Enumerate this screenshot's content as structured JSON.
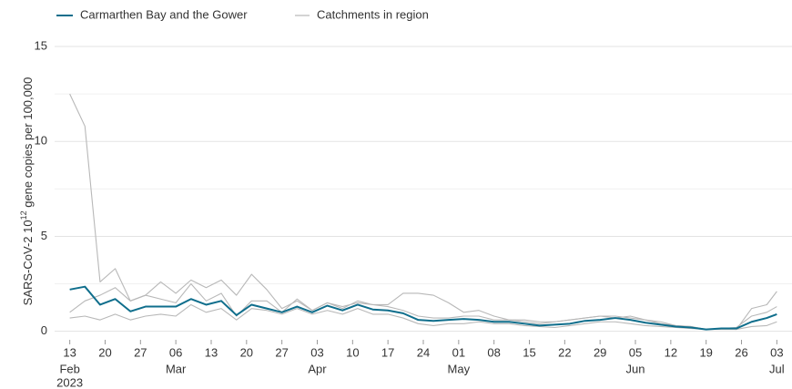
{
  "chart_data": {
    "type": "line",
    "ylabel": "SARS-CoV-2 10",
    "ylabel_sup": "12",
    "ylabel_rest": " gene copies per 100,000",
    "x": [
      "2023-02-13",
      "2023-02-16",
      "2023-02-19",
      "2023-02-22",
      "2023-02-25",
      "2023-02-28",
      "2023-03-03",
      "2023-03-06",
      "2023-03-09",
      "2023-03-12",
      "2023-03-15",
      "2023-03-18",
      "2023-03-21",
      "2023-03-24",
      "2023-03-27",
      "2023-03-30",
      "2023-04-02",
      "2023-04-05",
      "2023-04-08",
      "2023-04-11",
      "2023-04-14",
      "2023-04-17",
      "2023-04-20",
      "2023-04-23",
      "2023-04-26",
      "2023-04-29",
      "2023-05-02",
      "2023-05-05",
      "2023-05-08",
      "2023-05-11",
      "2023-05-14",
      "2023-05-17",
      "2023-05-20",
      "2023-05-23",
      "2023-05-26",
      "2023-05-29",
      "2023-06-01",
      "2023-06-04",
      "2023-06-07",
      "2023-06-10",
      "2023-06-13",
      "2023-06-16",
      "2023-06-19",
      "2023-06-22",
      "2023-06-25",
      "2023-06-28",
      "2023-07-01",
      "2023-07-03"
    ],
    "series": [
      {
        "name": "Carmarthen Bay and the Gower",
        "color": "#0f6e8c",
        "values": [
          2.2,
          2.35,
          1.4,
          1.7,
          1.05,
          1.3,
          1.3,
          1.3,
          1.7,
          1.4,
          1.6,
          0.85,
          1.4,
          1.2,
          1.0,
          1.3,
          1.0,
          1.35,
          1.1,
          1.4,
          1.15,
          1.1,
          0.95,
          0.6,
          0.55,
          0.6,
          0.65,
          0.6,
          0.5,
          0.5,
          0.4,
          0.3,
          0.35,
          0.4,
          0.55,
          0.6,
          0.7,
          0.6,
          0.45,
          0.35,
          0.25,
          0.2,
          0.1,
          0.15,
          0.15,
          0.5,
          0.7,
          0.9
        ]
      }
    ],
    "region": {
      "name": "Catchments in region",
      "color": "#b8b8b8",
      "lines": [
        {
          "values": [
            12.5,
            10.8,
            2.6,
            3.3,
            1.6,
            1.9,
            2.6,
            2.0,
            2.7,
            2.3,
            2.7,
            1.9,
            3.0,
            2.2,
            1.2,
            1.6,
            1.1,
            1.5,
            1.3,
            1.5,
            1.4,
            1.4,
            2.0,
            2.0,
            1.9,
            1.5,
            1.0,
            1.1,
            0.8,
            0.6,
            0.6,
            0.5,
            0.5,
            0.6,
            0.7,
            0.8,
            0.7,
            0.8,
            0.6,
            0.5,
            0.3,
            0.25,
            0.1,
            0.15,
            0.1,
            1.2,
            1.4,
            2.1
          ]
        },
        {
          "values": [
            1.0,
            1.6,
            1.9,
            2.3,
            1.6,
            1.9,
            1.7,
            1.5,
            2.5,
            1.6,
            2.0,
            0.8,
            1.6,
            1.6,
            1.0,
            1.7,
            1.1,
            1.5,
            1.2,
            1.6,
            1.4,
            1.3,
            1.1,
            0.8,
            0.7,
            0.7,
            0.8,
            0.8,
            0.6,
            0.6,
            0.5,
            0.4,
            0.5,
            0.6,
            0.7,
            0.8,
            0.8,
            0.7,
            0.6,
            0.4,
            0.3,
            0.25,
            0.1,
            0.15,
            0.2,
            0.8,
            1.0,
            1.3
          ]
        },
        {
          "values": [
            0.7,
            0.8,
            0.6,
            0.9,
            0.6,
            0.8,
            0.9,
            0.8,
            1.4,
            1.0,
            1.2,
            0.6,
            1.2,
            1.1,
            0.9,
            1.2,
            0.9,
            1.1,
            0.9,
            1.2,
            0.9,
            0.9,
            0.7,
            0.4,
            0.3,
            0.4,
            0.4,
            0.5,
            0.4,
            0.4,
            0.3,
            0.25,
            0.2,
            0.3,
            0.4,
            0.5,
            0.5,
            0.4,
            0.3,
            0.25,
            0.2,
            0.15,
            0.1,
            0.1,
            0.1,
            0.25,
            0.3,
            0.5
          ]
        }
      ]
    },
    "xlim": [
      "2023-02-10",
      "2023-07-06"
    ],
    "xticks": [
      {
        "value": "2023-02-13",
        "label": "13"
      },
      {
        "value": "2023-02-20",
        "label": "20"
      },
      {
        "value": "2023-02-27",
        "label": "27"
      },
      {
        "value": "2023-03-06",
        "label": "06"
      },
      {
        "value": "2023-03-13",
        "label": "13"
      },
      {
        "value": "2023-03-20",
        "label": "20"
      },
      {
        "value": "2023-03-27",
        "label": "27"
      },
      {
        "value": "2023-04-03",
        "label": "03"
      },
      {
        "value": "2023-04-10",
        "label": "10"
      },
      {
        "value": "2023-04-17",
        "label": "17"
      },
      {
        "value": "2023-04-24",
        "label": "24"
      },
      {
        "value": "2023-05-01",
        "label": "01"
      },
      {
        "value": "2023-05-08",
        "label": "08"
      },
      {
        "value": "2023-05-15",
        "label": "15"
      },
      {
        "value": "2023-05-22",
        "label": "22"
      },
      {
        "value": "2023-05-29",
        "label": "29"
      },
      {
        "value": "2023-06-05",
        "label": "05"
      },
      {
        "value": "2023-06-12",
        "label": "12"
      },
      {
        "value": "2023-06-19",
        "label": "19"
      },
      {
        "value": "2023-06-26",
        "label": "26"
      },
      {
        "value": "2023-07-03",
        "label": "03"
      }
    ],
    "month_ticks": [
      {
        "value": "2023-02-13",
        "label": "Feb"
      },
      {
        "value": "2023-03-06",
        "label": "Mar"
      },
      {
        "value": "2023-04-03",
        "label": "Apr"
      },
      {
        "value": "2023-05-01",
        "label": "May"
      },
      {
        "value": "2023-06-05",
        "label": "Jun"
      },
      {
        "value": "2023-07-03",
        "label": "Jul"
      }
    ],
    "year_tick": {
      "value": "2023-02-13",
      "label": "2023"
    },
    "ylim": [
      -0.4,
      15
    ],
    "yticks": [
      0,
      5,
      10,
      15
    ],
    "minor_yticks": [
      2.5,
      7.5,
      12.5
    ],
    "grid": true
  }
}
